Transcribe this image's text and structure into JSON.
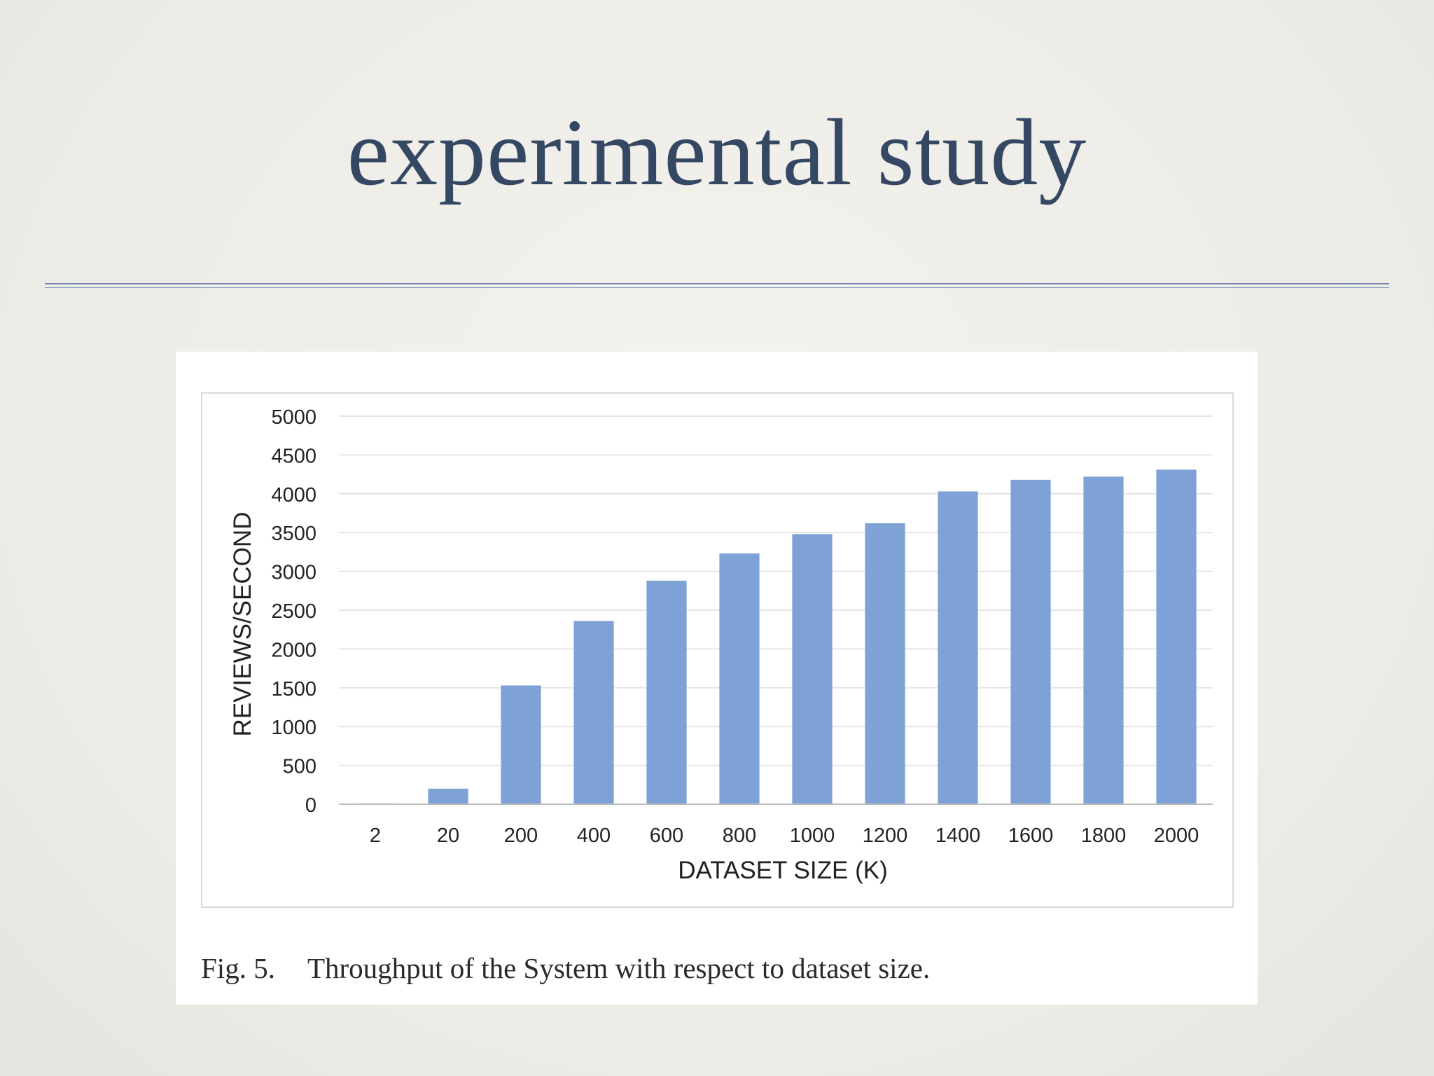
{
  "slide": {
    "title": "experimental study"
  },
  "caption": {
    "label": "Fig. 5.",
    "text": "Throughput of the System with respect to dataset size."
  },
  "chart_data": {
    "type": "bar",
    "title": "",
    "xlabel": "DATASET SIZE (K)",
    "ylabel": "REVIEWS/SECOND",
    "categories": [
      "2",
      "20",
      "200",
      "400",
      "600",
      "800",
      "1000",
      "1200",
      "1400",
      "1600",
      "1800",
      "2000"
    ],
    "values": [
      10,
      200,
      1530,
      2360,
      2880,
      3230,
      3480,
      3620,
      4030,
      4180,
      4220,
      4310
    ],
    "ylim": [
      0,
      5000
    ],
    "yticks": [
      0,
      500,
      1000,
      1500,
      2000,
      2500,
      3000,
      3500,
      4000,
      4500,
      5000
    ],
    "grid": true,
    "legend": "none",
    "bar_color": "#7fa2d6",
    "grid_color": "#e6e6e6"
  }
}
